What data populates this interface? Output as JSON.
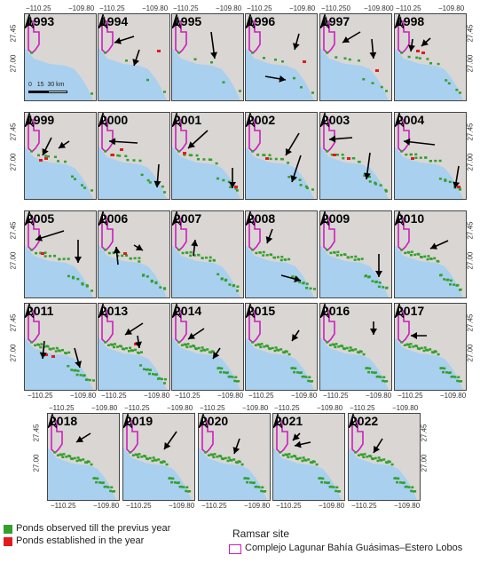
{
  "panels": [
    {
      "year": "1993"
    },
    {
      "year": "1994"
    },
    {
      "year": "1995"
    },
    {
      "year": "1996"
    },
    {
      "year": "1997"
    },
    {
      "year": "1998"
    },
    {
      "year": "1999"
    },
    {
      "year": "2000"
    },
    {
      "year": "2001"
    },
    {
      "year": "2002"
    },
    {
      "year": "2003"
    },
    {
      "year": "2004"
    },
    {
      "year": "2005"
    },
    {
      "year": "2006"
    },
    {
      "year": "2007"
    },
    {
      "year": "2008"
    },
    {
      "year": "2009"
    },
    {
      "year": "2010"
    },
    {
      "year": "2011"
    },
    {
      "year": "2013"
    },
    {
      "year": "2014"
    },
    {
      "year": "2015"
    },
    {
      "year": "2016"
    },
    {
      "year": "2017"
    },
    {
      "year": "2018"
    },
    {
      "year": "2019"
    },
    {
      "year": "2020"
    },
    {
      "year": "2021"
    },
    {
      "year": "2022"
    }
  ],
  "axis": {
    "lon_left": "−110.25",
    "lon_right": "−109.80",
    "lon_left_1997": "−110.250",
    "lon_right_1997": "−109.800",
    "lat_top": "27.45",
    "lat_bottom": "27.00"
  },
  "scale": {
    "label0": "0",
    "label1": "15",
    "label2": "30 km"
  },
  "legend": {
    "observed": "Ponds observed till the previus year",
    "established": "Ponds established in the year",
    "ramsar_title": "Ramsar site",
    "ramsar_name": "Complejo Lagunar Bahía Guásimas–Estero Lobos"
  },
  "colors": {
    "land": "#d9d6d4",
    "sea": "#a9d0ee",
    "observed": "#33a02c",
    "established": "#e31a1c",
    "ramsar": "#d01cc0"
  }
}
